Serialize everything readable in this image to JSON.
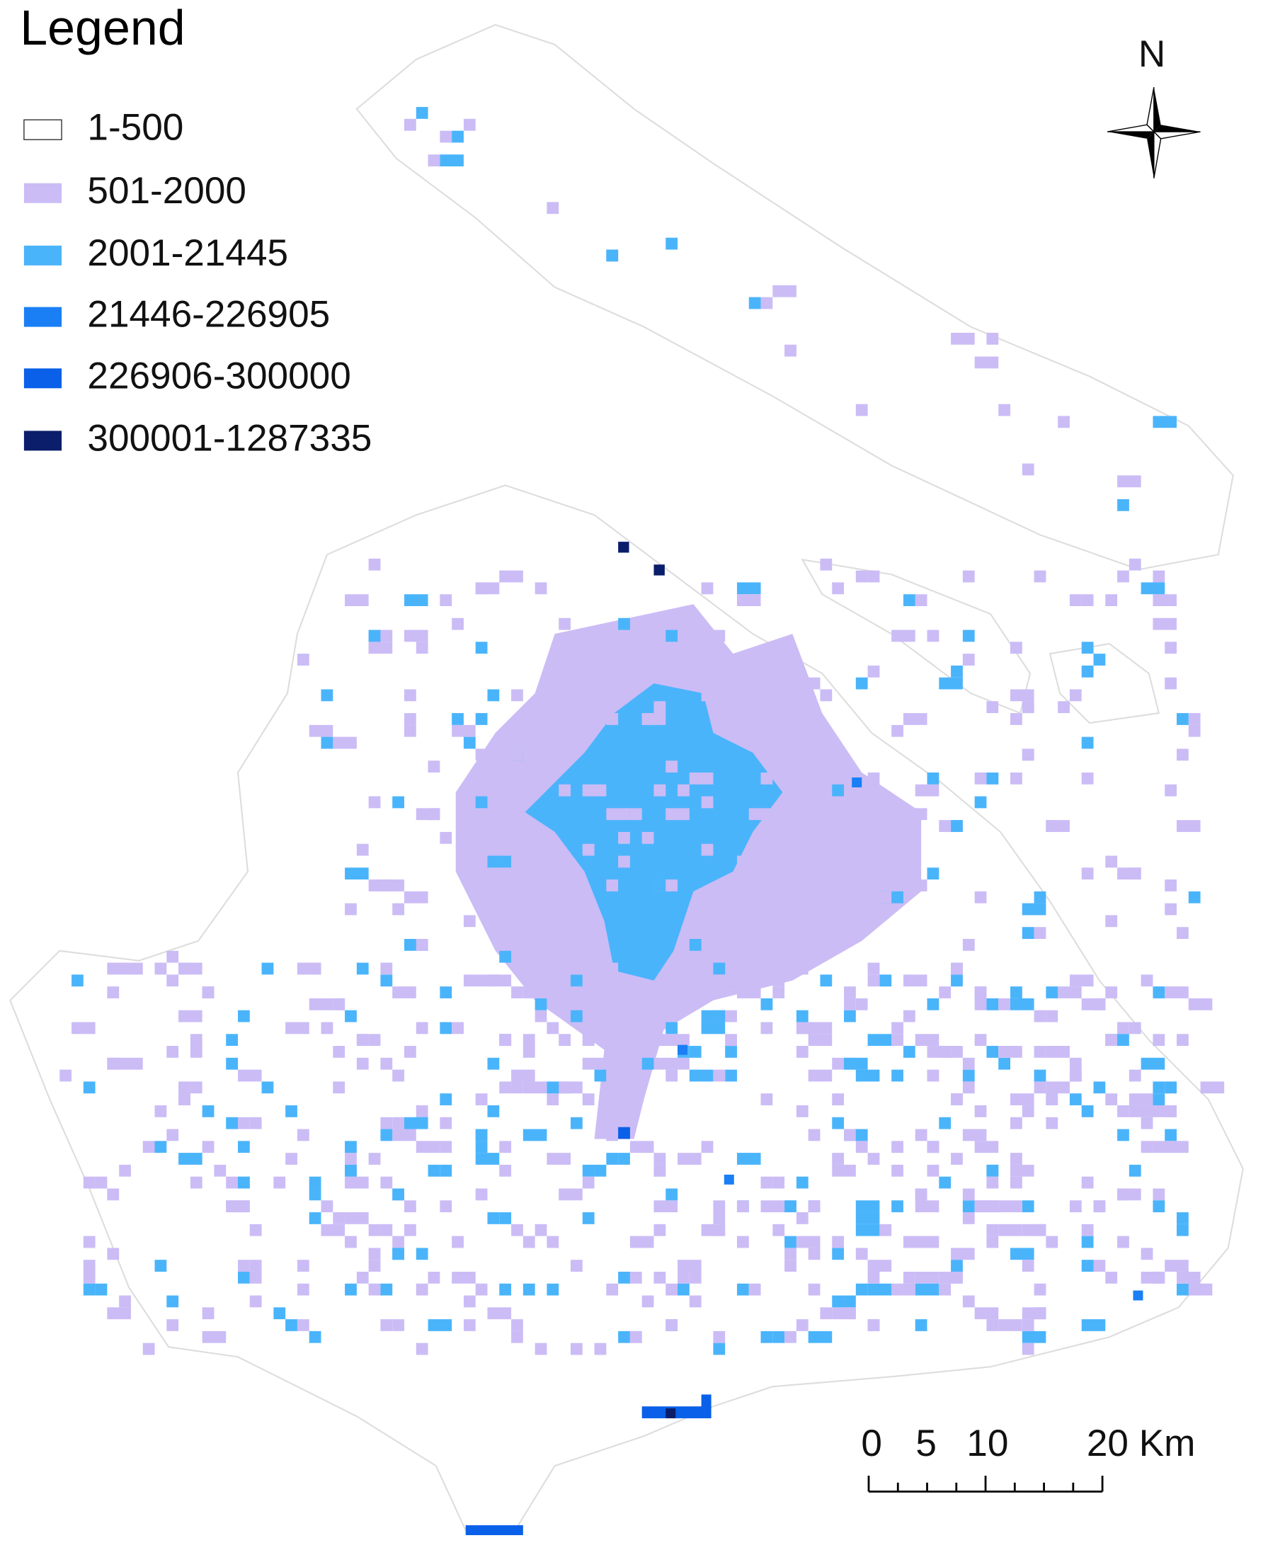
{
  "legend": {
    "title": "Legend",
    "items": [
      {
        "label": "1-500",
        "color": "#ffffff"
      },
      {
        "label": "501-2000",
        "color": "#cbbcf6"
      },
      {
        "label": "2001-21445",
        "color": "#4ab4fb"
      },
      {
        "label": "21446-226905",
        "color": "#1a7ff5"
      },
      {
        "label": "226906-300000",
        "color": "#0a60e8"
      },
      {
        "label": "300001-1287335",
        "color": "#0b1e6b"
      }
    ]
  },
  "north_label": "N",
  "scale_bar": {
    "labels": [
      "0",
      "5",
      "10",
      "20 Km"
    ]
  }
}
